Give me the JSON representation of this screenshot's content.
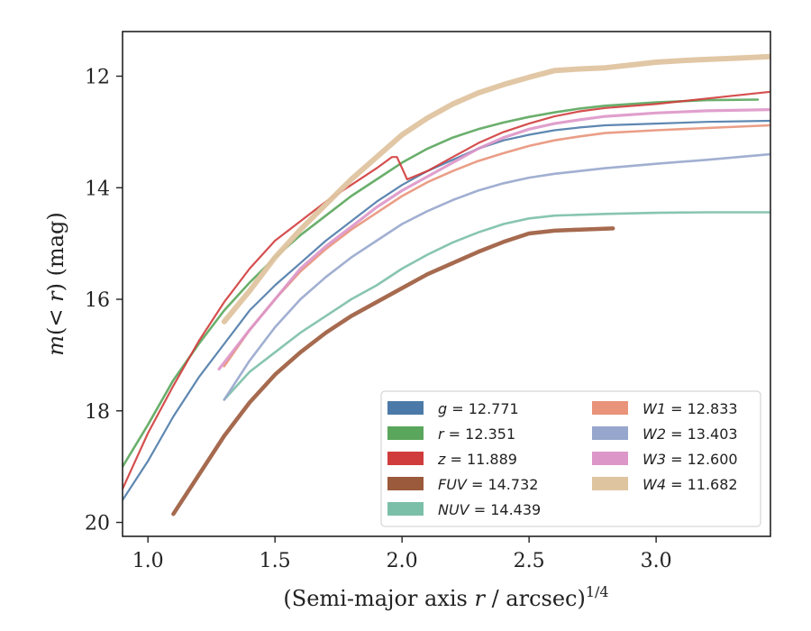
{
  "chart_data": {
    "type": "line",
    "xlabel": "(Semi-major axis r / arcsec)^{1/4}",
    "xlabel_main": "(Semi-major axis ",
    "xlabel_r": "r",
    "xlabel_tail": " / arcsec)",
    "xlabel_sup": "1/4",
    "ylabel": "m(< r) (mag)",
    "ylabel_m": "m",
    "ylabel_open": "(",
    "ylabel_lt": "< ",
    "ylabel_r": "r",
    "ylabel_close": ") (mag)",
    "xlim": [
      0.9,
      3.45
    ],
    "ylim": [
      20.25,
      11.2
    ],
    "y_inverted": true,
    "xticks": [
      1.0,
      1.5,
      2.0,
      2.5,
      3.0
    ],
    "xtick_labels": [
      "1.0",
      "1.5",
      "2.0",
      "2.5",
      "3.0"
    ],
    "yticks": [
      12,
      14,
      16,
      18,
      20
    ],
    "ytick_labels": [
      "12",
      "14",
      "16",
      "18",
      "20"
    ],
    "grid": false,
    "legend_position": "lower-right",
    "legend_columns": 2,
    "series": [
      {
        "name": "g = 12.771",
        "label_sym": "g",
        "label_val": "= 12.771",
        "color": "#4c7aa8",
        "points": [
          [
            0.9,
            19.6
          ],
          [
            1.0,
            18.9
          ],
          [
            1.1,
            18.1
          ],
          [
            1.2,
            17.4
          ],
          [
            1.3,
            16.8
          ],
          [
            1.4,
            16.2
          ],
          [
            1.5,
            15.75
          ],
          [
            1.6,
            15.35
          ],
          [
            1.7,
            14.95
          ],
          [
            1.8,
            14.6
          ],
          [
            1.9,
            14.25
          ],
          [
            2.0,
            13.95
          ],
          [
            2.1,
            13.7
          ],
          [
            2.2,
            13.5
          ],
          [
            2.3,
            13.3
          ],
          [
            2.4,
            13.15
          ],
          [
            2.5,
            13.05
          ],
          [
            2.6,
            12.97
          ],
          [
            2.7,
            12.92
          ],
          [
            2.8,
            12.88
          ],
          [
            3.0,
            12.85
          ],
          [
            3.2,
            12.82
          ],
          [
            3.45,
            12.8
          ]
        ]
      },
      {
        "name": "r = 12.351",
        "label_sym": "r",
        "label_val": "= 12.351",
        "color": "#5aa65c",
        "points": [
          [
            0.9,
            19.0
          ],
          [
            1.0,
            18.25
          ],
          [
            1.1,
            17.45
          ],
          [
            1.2,
            16.8
          ],
          [
            1.3,
            16.2
          ],
          [
            1.4,
            15.7
          ],
          [
            1.5,
            15.25
          ],
          [
            1.6,
            14.85
          ],
          [
            1.7,
            14.5
          ],
          [
            1.8,
            14.15
          ],
          [
            1.9,
            13.85
          ],
          [
            2.0,
            13.55
          ],
          [
            2.1,
            13.3
          ],
          [
            2.2,
            13.1
          ],
          [
            2.3,
            12.95
          ],
          [
            2.4,
            12.83
          ],
          [
            2.5,
            12.73
          ],
          [
            2.6,
            12.65
          ],
          [
            2.7,
            12.58
          ],
          [
            2.8,
            12.53
          ],
          [
            3.0,
            12.47
          ],
          [
            3.2,
            12.43
          ],
          [
            3.4,
            12.42
          ]
        ]
      },
      {
        "name": "z = 11.889",
        "label_sym": "z",
        "label_val": "= 11.889",
        "color": "#d03c3c",
        "points": [
          [
            0.9,
            19.4
          ],
          [
            1.0,
            18.4
          ],
          [
            1.1,
            17.55
          ],
          [
            1.2,
            16.75
          ],
          [
            1.3,
            16.05
          ],
          [
            1.4,
            15.45
          ],
          [
            1.5,
            14.95
          ],
          [
            1.6,
            14.6
          ],
          [
            1.7,
            14.25
          ],
          [
            1.8,
            13.95
          ],
          [
            1.9,
            13.65
          ],
          [
            1.96,
            13.45
          ],
          [
            1.98,
            13.45
          ],
          [
            2.0,
            13.65
          ],
          [
            2.02,
            13.85
          ],
          [
            2.1,
            13.7
          ],
          [
            2.2,
            13.45
          ],
          [
            2.3,
            13.2
          ],
          [
            2.4,
            13.0
          ],
          [
            2.5,
            12.85
          ],
          [
            2.6,
            12.72
          ],
          [
            2.7,
            12.63
          ],
          [
            2.8,
            12.57
          ],
          [
            3.0,
            12.5
          ],
          [
            3.2,
            12.4
          ],
          [
            3.45,
            12.28
          ]
        ]
      },
      {
        "name": "FUV = 14.732",
        "label_sym": "FUV",
        "label_val": "= 14.732",
        "color": "#9c5a3c",
        "points": [
          [
            1.1,
            19.85
          ],
          [
            1.2,
            19.15
          ],
          [
            1.3,
            18.45
          ],
          [
            1.4,
            17.85
          ],
          [
            1.5,
            17.35
          ],
          [
            1.6,
            16.95
          ],
          [
            1.7,
            16.6
          ],
          [
            1.8,
            16.3
          ],
          [
            1.9,
            16.05
          ],
          [
            2.0,
            15.8
          ],
          [
            2.1,
            15.55
          ],
          [
            2.2,
            15.35
          ],
          [
            2.3,
            15.15
          ],
          [
            2.4,
            14.97
          ],
          [
            2.5,
            14.82
          ],
          [
            2.6,
            14.77
          ],
          [
            2.7,
            14.75
          ],
          [
            2.83,
            14.73
          ]
        ]
      },
      {
        "name": "NUV = 14.439",
        "label_sym": "NUV",
        "label_val": "= 14.439",
        "color": "#7bbfa8",
        "points": [
          [
            1.3,
            17.8
          ],
          [
            1.4,
            17.3
          ],
          [
            1.5,
            16.95
          ],
          [
            1.6,
            16.6
          ],
          [
            1.7,
            16.3
          ],
          [
            1.8,
            16.0
          ],
          [
            1.9,
            15.75
          ],
          [
            2.0,
            15.45
          ],
          [
            2.1,
            15.2
          ],
          [
            2.2,
            14.98
          ],
          [
            2.3,
            14.8
          ],
          [
            2.4,
            14.65
          ],
          [
            2.5,
            14.55
          ],
          [
            2.6,
            14.5
          ],
          [
            2.8,
            14.47
          ],
          [
            3.0,
            14.45
          ],
          [
            3.2,
            14.44
          ],
          [
            3.45,
            14.44
          ]
        ]
      },
      {
        "name": "W1 = 12.833",
        "label_sym": "W1",
        "label_val": "= 12.833",
        "color": "#e8937a",
        "points": [
          [
            1.3,
            17.2
          ],
          [
            1.4,
            16.55
          ],
          [
            1.5,
            16.0
          ],
          [
            1.6,
            15.5
          ],
          [
            1.7,
            15.1
          ],
          [
            1.8,
            14.75
          ],
          [
            1.9,
            14.45
          ],
          [
            2.0,
            14.15
          ],
          [
            2.1,
            13.9
          ],
          [
            2.2,
            13.7
          ],
          [
            2.3,
            13.52
          ],
          [
            2.4,
            13.38
          ],
          [
            2.5,
            13.25
          ],
          [
            2.6,
            13.15
          ],
          [
            2.7,
            13.08
          ],
          [
            2.8,
            13.02
          ],
          [
            3.0,
            12.97
          ],
          [
            3.2,
            12.93
          ],
          [
            3.45,
            12.88
          ]
        ]
      },
      {
        "name": "W2 = 13.403",
        "label_sym": "W2",
        "label_val": "= 13.403",
        "color": "#97a6cc",
        "points": [
          [
            1.3,
            17.8
          ],
          [
            1.4,
            17.1
          ],
          [
            1.5,
            16.5
          ],
          [
            1.6,
            16.0
          ],
          [
            1.7,
            15.6
          ],
          [
            1.8,
            15.25
          ],
          [
            1.9,
            14.95
          ],
          [
            2.0,
            14.65
          ],
          [
            2.1,
            14.42
          ],
          [
            2.2,
            14.22
          ],
          [
            2.3,
            14.05
          ],
          [
            2.4,
            13.92
          ],
          [
            2.5,
            13.82
          ],
          [
            2.6,
            13.75
          ],
          [
            2.7,
            13.7
          ],
          [
            2.8,
            13.65
          ],
          [
            3.0,
            13.57
          ],
          [
            3.2,
            13.5
          ],
          [
            3.45,
            13.4
          ]
        ]
      },
      {
        "name": "W3 = 12.600",
        "label_sym": "W3",
        "label_val": "= 12.600",
        "color": "#dd96c8",
        "points": [
          [
            1.28,
            17.25
          ],
          [
            1.4,
            16.55
          ],
          [
            1.5,
            16.0
          ],
          [
            1.6,
            15.45
          ],
          [
            1.7,
            15.05
          ],
          [
            1.8,
            14.7
          ],
          [
            1.9,
            14.35
          ],
          [
            2.0,
            14.05
          ],
          [
            2.1,
            13.8
          ],
          [
            2.2,
            13.55
          ],
          [
            2.3,
            13.3
          ],
          [
            2.4,
            13.1
          ],
          [
            2.5,
            12.95
          ],
          [
            2.6,
            12.85
          ],
          [
            2.7,
            12.78
          ],
          [
            2.8,
            12.72
          ],
          [
            3.0,
            12.66
          ],
          [
            3.2,
            12.62
          ],
          [
            3.45,
            12.6
          ]
        ]
      },
      {
        "name": "W4 = 11.682",
        "label_sym": "W4",
        "label_val": "= 11.682",
        "color": "#dfc4a0",
        "points": [
          [
            1.3,
            16.4
          ],
          [
            1.4,
            15.85
          ],
          [
            1.5,
            15.25
          ],
          [
            1.6,
            14.75
          ],
          [
            1.7,
            14.3
          ],
          [
            1.8,
            13.85
          ],
          [
            1.9,
            13.45
          ],
          [
            2.0,
            13.05
          ],
          [
            2.1,
            12.75
          ],
          [
            2.2,
            12.5
          ],
          [
            2.3,
            12.3
          ],
          [
            2.4,
            12.15
          ],
          [
            2.5,
            12.02
          ],
          [
            2.6,
            11.9
          ],
          [
            2.7,
            11.87
          ],
          [
            2.8,
            11.85
          ],
          [
            2.9,
            11.8
          ],
          [
            3.0,
            11.75
          ],
          [
            3.1,
            11.72
          ],
          [
            3.2,
            11.7
          ],
          [
            3.3,
            11.68
          ],
          [
            3.45,
            11.65
          ]
        ]
      }
    ]
  }
}
